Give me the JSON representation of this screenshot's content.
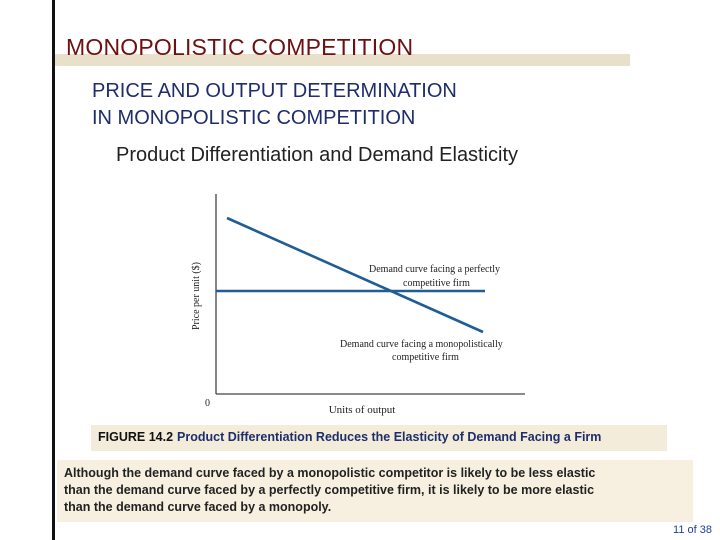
{
  "slide": {
    "title": "MONOPOLISTIC COMPETITION",
    "subtitle_lines": [
      "PRICE AND OUTPUT DETERMINATION",
      "IN MONOPOLISTIC COMPETITION"
    ],
    "section_heading": "Product Differentiation and Demand Elasticity",
    "figure": {
      "y_axis_label": "Price per unit ($)",
      "x_axis_label": "Units of output",
      "origin_label": "0",
      "perfect_label_lines": [
        "Demand curve facing a perfectly",
        "competitive firm"
      ],
      "mono_label_lines": [
        "Demand curve facing a monopolistically",
        "competitive firm"
      ]
    },
    "caption": {
      "number": "FIGURE 14.2",
      "text": "Product Differentiation Reduces the Elasticity of Demand Facing a Firm"
    },
    "note_lines": [
      "Although the demand curve faced by a monopolistic competitor is likely to be less elastic",
      "than the demand curve faced by a perfectly competitive firm, it is likely to be more elastic",
      "than the demand curve faced by a monopoly."
    ],
    "page_number": "11 of 38"
  },
  "colors": {
    "title": "#6e0f10",
    "subtitle": "#1f2d6b",
    "curve": "#1f5d94",
    "caption_bg": "#f4ecdb",
    "note_bg": "#f7f0e1"
  }
}
